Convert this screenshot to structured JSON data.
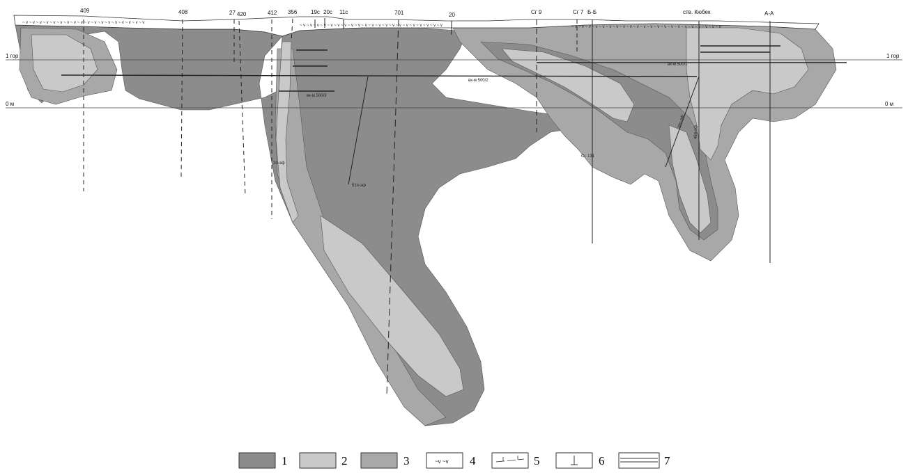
{
  "section": {
    "levels": {
      "level_1_left": "1 гор",
      "level_1_right": "1 гор",
      "level_0_left": "0 м",
      "level_0_right": "0 м"
    },
    "boreholes": [
      "409",
      "408",
      "27",
      "420",
      "412",
      "356",
      "19с",
      "20с",
      "11с",
      "701",
      "20",
      "Сг 9",
      "Сг 7",
      "Б-Б",
      "ств. Кюбек",
      "А-А"
    ],
    "workings": [
      "вк-м 500/1",
      "вк-м 500/2",
      "вк-м 500/3",
      "3п-эф",
      "51п-эф",
      "Сг. 131",
      "39п-эф",
      "46п-эф"
    ]
  },
  "legend": {
    "items": [
      {
        "num": "1",
        "desc": "dark-grey-fill",
        "color": "#8c8c8c"
      },
      {
        "num": "2",
        "desc": "light-grey-fill",
        "color": "#c9c9c9"
      },
      {
        "num": "3",
        "desc": "medium-grey-fill",
        "color": "#a8a8a8"
      },
      {
        "num": "4",
        "desc": "weathering-crust-v-pattern",
        "symbol": "~v ~v"
      },
      {
        "num": "5",
        "desc": "tick-line"
      },
      {
        "num": "6",
        "desc": "borehole-symbol"
      },
      {
        "num": "7",
        "desc": "double-line"
      }
    ]
  },
  "colors": {
    "dark": "#8c8c8c",
    "medium": "#a8a8a8",
    "light": "#c9c9c9",
    "white": "#ffffff",
    "line": "#333333"
  }
}
